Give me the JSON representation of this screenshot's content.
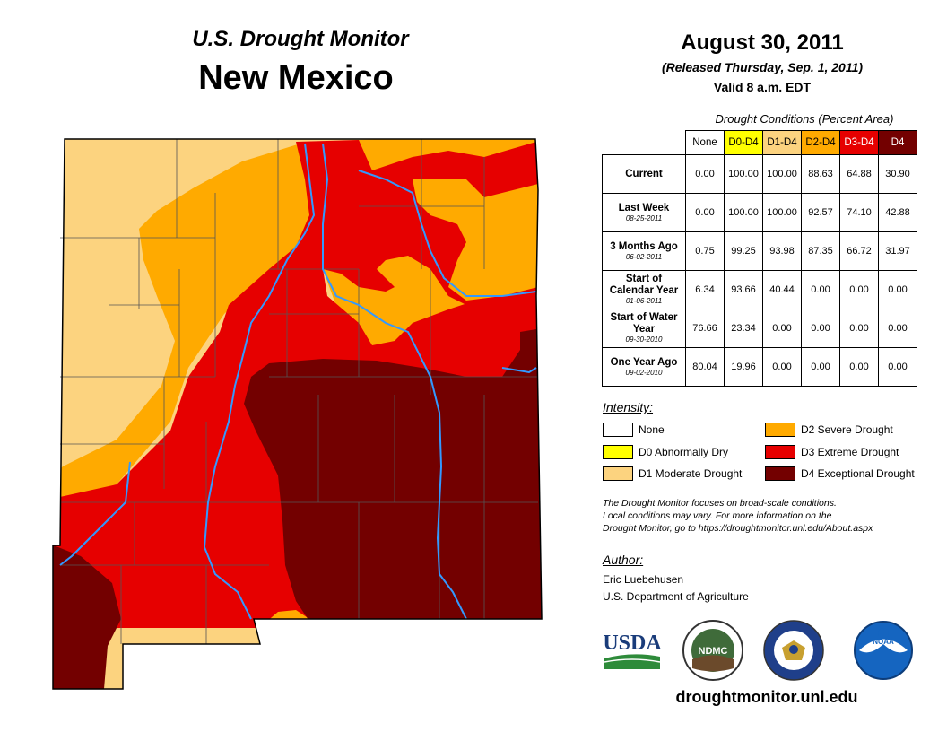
{
  "header": {
    "subtitle": "U.S. Drought Monitor",
    "state": "New Mexico",
    "date": "August 30, 2011",
    "released": "(Released Thursday, Sep. 1, 2011)",
    "valid": "Valid 8 a.m. EDT"
  },
  "conditions": {
    "title": "Drought Conditions (Percent Area)",
    "columns": [
      "None",
      "D0-D4",
      "D1-D4",
      "D2-D4",
      "D3-D4",
      "D4"
    ],
    "rows": [
      {
        "label": "Current",
        "date": "",
        "values": [
          "0.00",
          "100.00",
          "100.00",
          "88.63",
          "64.88",
          "30.90"
        ]
      },
      {
        "label": "Last Week",
        "date": "08-25-2011",
        "values": [
          "0.00",
          "100.00",
          "100.00",
          "92.57",
          "74.10",
          "42.88"
        ]
      },
      {
        "label": "3 Months Ago",
        "date": "06-02-2011",
        "values": [
          "0.75",
          "99.25",
          "93.98",
          "87.35",
          "66.72",
          "31.97"
        ]
      },
      {
        "label": "Start of Calendar Year",
        "date": "01-06-2011",
        "values": [
          "6.34",
          "93.66",
          "40.44",
          "0.00",
          "0.00",
          "0.00"
        ]
      },
      {
        "label": "Start of Water Year",
        "date": "09-30-2010",
        "values": [
          "76.66",
          "23.34",
          "0.00",
          "0.00",
          "0.00",
          "0.00"
        ]
      },
      {
        "label": "One Year Ago",
        "date": "09-02-2010",
        "values": [
          "80.04",
          "19.96",
          "0.00",
          "0.00",
          "0.00",
          "0.00"
        ]
      }
    ]
  },
  "legend": {
    "title": "Intensity:",
    "items": [
      {
        "label": "None",
        "color": "#ffffff"
      },
      {
        "label": "D0 Abnormally Dry",
        "color": "#ffff00"
      },
      {
        "label": "D1 Moderate Drought",
        "color": "#fcd37f"
      },
      {
        "label": "D2 Severe Drought",
        "color": "#ffaa00"
      },
      {
        "label": "D3 Extreme Drought",
        "color": "#e60000"
      },
      {
        "label": "D4 Exceptional Drought",
        "color": "#730000"
      }
    ]
  },
  "note": {
    "line1": "The Drought Monitor focuses on broad-scale conditions.",
    "line2": "Local conditions may vary. For more information on the",
    "line3": "Drought Monitor, go to https://droughtmonitor.unl.edu/About.aspx"
  },
  "author": {
    "heading": "Author:",
    "name": "Eric Luebehusen",
    "org": "U.S. Department of Agriculture"
  },
  "logos": {
    "usda": "USDA",
    "ndmc": "NDMC",
    "noaa": "NOAA"
  },
  "footer_url": "droughtmonitor.unl.edu",
  "colors": {
    "d1": "#fcd37f",
    "d2": "#ffaa00",
    "d3": "#e60000",
    "d4": "#730000",
    "river": "#3399ff"
  }
}
